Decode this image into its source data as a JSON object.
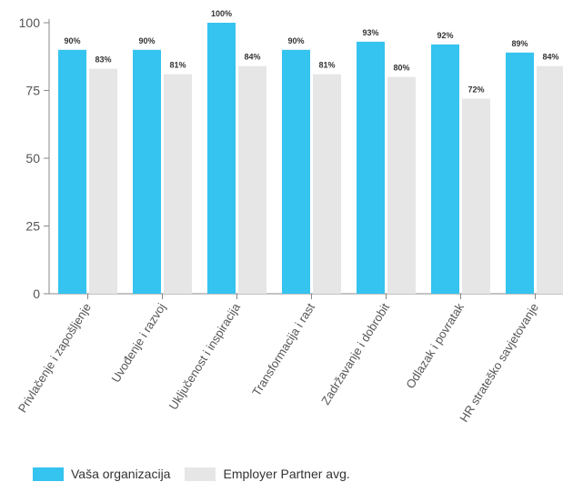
{
  "chart_data": {
    "type": "bar",
    "categories": [
      "Privlačenje i zapošljenje",
      "Uvođenje i razvoj",
      "Uključenost i inspiracija",
      "Transformacija i rast",
      "Zadržavanje i dobrobit",
      "Odlazak i povratak",
      "HR strateško savjetovanje"
    ],
    "series": [
      {
        "name": "Vaša organizacija",
        "values": [
          90,
          90,
          100,
          90,
          93,
          92,
          89
        ],
        "labels": [
          "90%",
          "90%",
          "100%",
          "90%",
          "93%",
          "92%",
          "89%"
        ],
        "color": "#35c3ef"
      },
      {
        "name": "Employer Partner avg.",
        "values": [
          83,
          81,
          84,
          81,
          80,
          72,
          84
        ],
        "labels": [
          "83%",
          "81%",
          "84%",
          "81%",
          "80%",
          "72%",
          "84%"
        ],
        "color": "#e6e6e6"
      }
    ],
    "yticks": [
      0,
      25,
      50,
      75,
      100
    ],
    "ylim": [
      0,
      100
    ],
    "legend_position": "bottom-left",
    "grid": false
  },
  "colors": {
    "axis": "#888888",
    "text": "#555555"
  }
}
